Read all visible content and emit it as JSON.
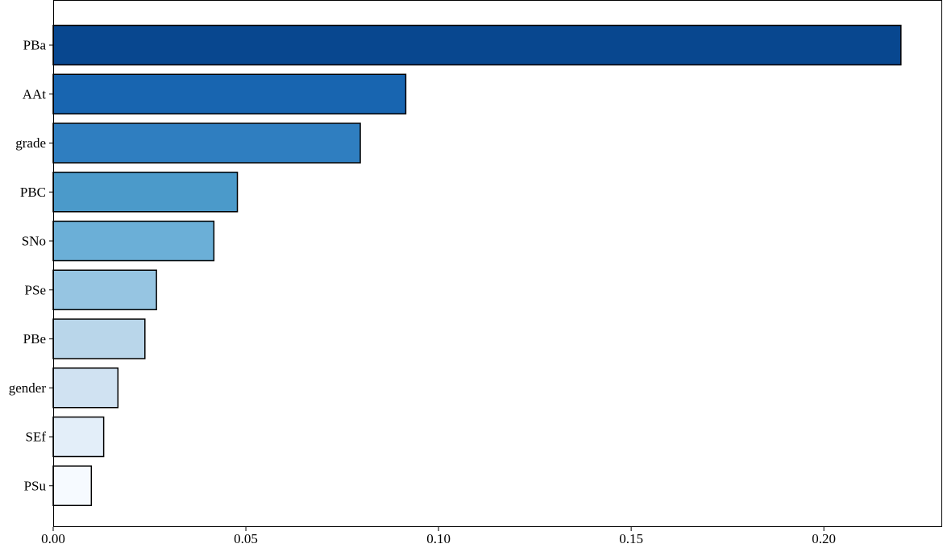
{
  "chart_data": {
    "type": "bar",
    "orientation": "horizontal",
    "title": "",
    "xlabel": "",
    "ylabel": "",
    "categories": [
      "PBa",
      "AAt",
      "grade",
      "PBC",
      "SNo",
      "PSe",
      "PBe",
      "gender",
      "SEf",
      "PSu"
    ],
    "values": [
      0.22,
      0.0915,
      0.0797,
      0.0478,
      0.0417,
      0.0268,
      0.0238,
      0.0168,
      0.0131,
      0.0099
    ],
    "colors": [
      "#08478f",
      "#1865b0",
      "#2f7ec0",
      "#4b9aca",
      "#6bafd7",
      "#96c5e2",
      "#b9d6ea",
      "#d0e2f2",
      "#e3eef9",
      "#f6faff"
    ],
    "xlim": [
      0,
      0.2305
    ],
    "xticks": [
      0.0,
      0.05,
      0.1,
      0.15,
      0.2
    ],
    "xtick_labels": [
      "0.00",
      "0.05",
      "0.10",
      "0.15",
      "0.20"
    ],
    "grid": false,
    "legend": "none"
  }
}
